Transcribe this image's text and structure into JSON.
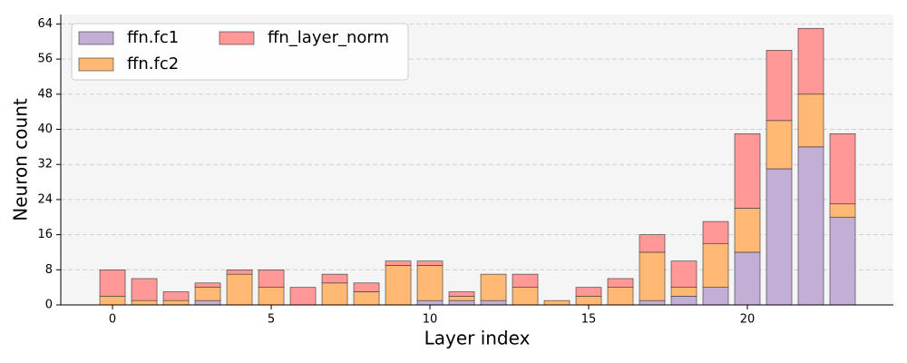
{
  "chart_data": {
    "type": "bar",
    "stacked": true,
    "xlabel": "Layer index",
    "ylabel": "Neuron count",
    "x": [
      0,
      1,
      2,
      3,
      4,
      5,
      6,
      7,
      8,
      9,
      10,
      11,
      12,
      13,
      14,
      15,
      16,
      17,
      18,
      19,
      20,
      21,
      22,
      23
    ],
    "series": [
      {
        "name": "ffn.fc1",
        "color": "#c3aed6",
        "values": [
          0,
          0,
          0,
          1,
          0,
          0,
          0,
          0,
          0,
          0,
          1,
          1,
          1,
          0,
          0,
          0,
          0,
          1,
          2,
          4,
          12,
          31,
          36,
          20
        ]
      },
      {
        "name": "ffn.fc2",
        "color": "#ffb974",
        "values": [
          2,
          1,
          1,
          3,
          7,
          4,
          0,
          5,
          3,
          9,
          8,
          1,
          6,
          4,
          1,
          2,
          4,
          11,
          2,
          10,
          10,
          11,
          12,
          3
        ]
      },
      {
        "name": "ffn_layer_norm",
        "color": "#ff9896",
        "values": [
          6,
          5,
          2,
          1,
          1,
          4,
          4,
          2,
          2,
          1,
          1,
          1,
          0,
          3,
          0,
          2,
          2,
          4,
          6,
          5,
          17,
          16,
          15,
          16
        ]
      }
    ],
    "xlim": [
      -1.63,
      24.6
    ],
    "xticks": [
      0,
      5,
      10,
      15,
      20
    ],
    "ylim": [
      0,
      66.15
    ],
    "yticks": [
      0,
      8,
      16,
      24,
      32,
      40,
      48,
      56,
      64
    ],
    "grid": true,
    "legend": "upper-left"
  }
}
